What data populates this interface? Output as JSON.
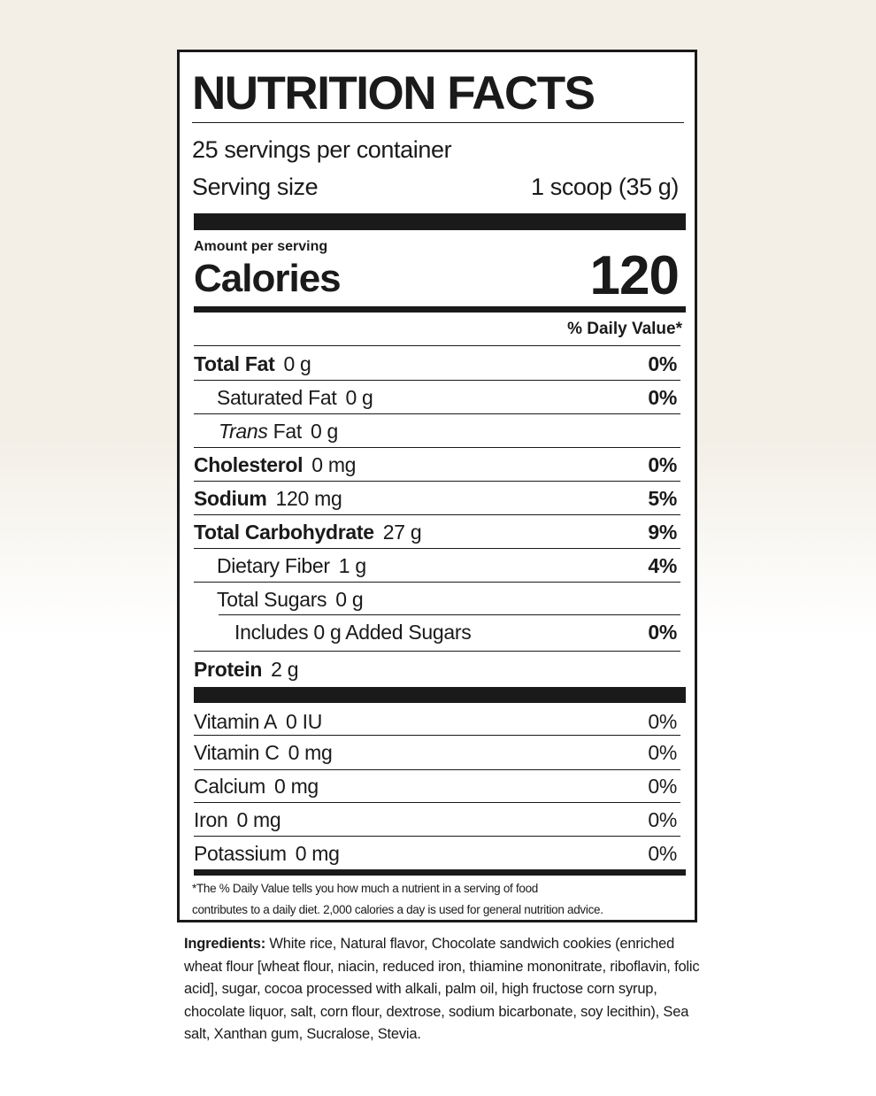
{
  "title": "NUTRITION FACTS",
  "servings": "25 servings per container",
  "serving_size": {
    "label": "Serving size",
    "value": "1 scoop (35 g)"
  },
  "amount_per_serving": "Amount per serving",
  "calories": {
    "label": "Calories",
    "value": 120
  },
  "daily_value_header": "% Daily Value*",
  "nutrients": [
    {
      "name": "Total Fat",
      "amount": "0 g",
      "dv": "0%"
    },
    {
      "name": "Saturated Fat",
      "amount": "0 g",
      "dv": "0%"
    },
    {
      "name_italic": "Trans",
      "name": "Fat",
      "amount": "0 g"
    },
    {
      "name": "Cholesterol",
      "amount": "0 mg",
      "dv": "0%"
    },
    {
      "name": "Sodium",
      "amount": "120 mg",
      "dv": "5%"
    },
    {
      "name": "Total Carbohydrate",
      "amount": "27 g",
      "dv": "9%"
    },
    {
      "name": "Dietary Fiber",
      "amount": "1 g",
      "dv": "4%"
    },
    {
      "name": "Total Sugars",
      "amount": "0 g"
    },
    {
      "name": "Includes 0 g Added Sugars",
      "dv": "0%"
    },
    {
      "name": "Protein",
      "amount": "2 g"
    }
  ],
  "vitamins": [
    {
      "name": "Vitamin A",
      "amount": "0 IU",
      "dv": "0%"
    },
    {
      "name": "Vitamin C",
      "amount": "0 mg",
      "dv": "0%"
    },
    {
      "name": "Calcium",
      "amount": "0 mg",
      "dv": "0%"
    },
    {
      "name": "Iron",
      "amount": "0 mg",
      "dv": "0%"
    },
    {
      "name": "Potassium",
      "amount": "0 mg",
      "dv": "0%"
    }
  ],
  "footnote": [
    "*The % Daily Value tells you how much a nutrient in a serving of food",
    "contributes to a daily diet. 2,000 calories a day is used for general nutrition advice."
  ],
  "ingredients": {
    "label": "Ingredients:",
    "text": "White rice, Natural flavor, Chocolate sandwich cookies (enriched wheat flour [wheat flour, niacin, reduced iron, thiamine mononitrate, riboflavin, folic acid], sugar, cocoa processed with alkali, palm oil, high fructose corn syrup, chocolate liquor, salt, corn flour, dextrose, sodium bicarbonate, soy lecithin), Sea salt, Xanthan gum, Sucralose, Stevia."
  }
}
